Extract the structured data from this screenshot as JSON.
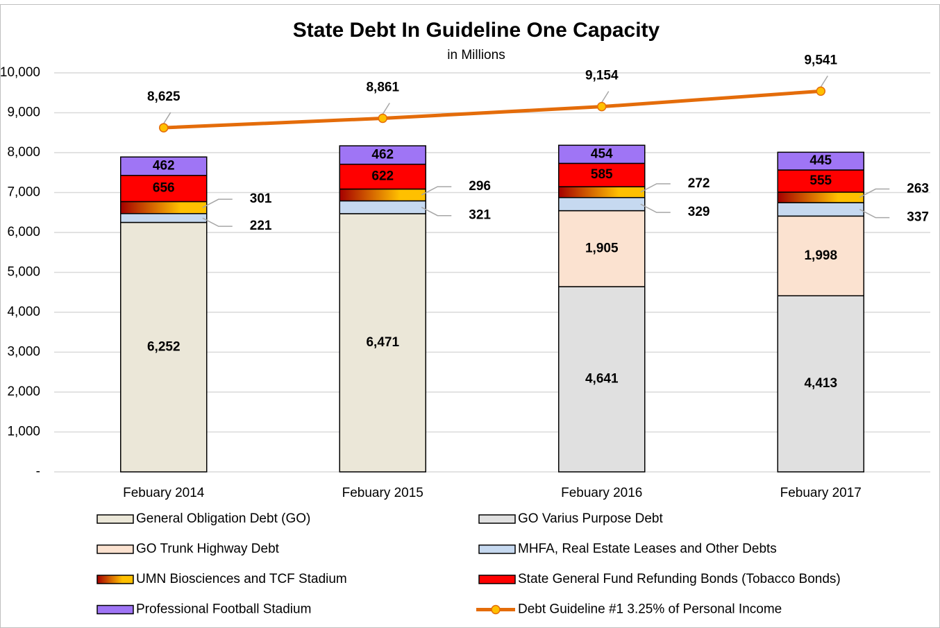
{
  "chart_data": {
    "type": "stacked_bar_line",
    "title": "State Debt In Guideline One Capacity",
    "subtitle": "in Millions",
    "categories": [
      "Febuary 2014",
      "Febuary 2015",
      "Febuary 2016",
      "Febuary 2017"
    ],
    "ylim": [
      0,
      10000
    ],
    "yticks": [
      {
        "value": 0,
        "label": "-"
      },
      {
        "value": 1000,
        "label": "1,000"
      },
      {
        "value": 2000,
        "label": "2,000"
      },
      {
        "value": 3000,
        "label": "3,000"
      },
      {
        "value": 4000,
        "label": "4,000"
      },
      {
        "value": 5000,
        "label": "5,000"
      },
      {
        "value": 6000,
        "label": "6,000"
      },
      {
        "value": 7000,
        "label": "7,000"
      },
      {
        "value": 8000,
        "label": "8,000"
      },
      {
        "value": 9000,
        "label": "9,000"
      },
      {
        "value": 10000,
        "label": "10,000"
      }
    ],
    "grid": true,
    "series": [
      {
        "name": "General Obligation Debt (GO)",
        "color": "#ebe7d8",
        "values": [
          6252,
          6471,
          null,
          null
        ],
        "value_labels": [
          "6,252",
          "6,471",
          null,
          null
        ]
      },
      {
        "name": "GO Varius Purpose Debt",
        "color": "#e0e0e0",
        "values": [
          null,
          null,
          4641,
          4413
        ],
        "value_labels": [
          null,
          null,
          "4,641",
          "4,413"
        ]
      },
      {
        "name": "GO Trunk Highway Debt",
        "color": "#fbe2d0",
        "values": [
          null,
          null,
          1905,
          1998
        ],
        "value_labels": [
          null,
          null,
          "1,905",
          "1,998"
        ]
      },
      {
        "name": "MHFA, Real Estate Leases and Other Debts",
        "color": "#c6d9f0",
        "values": [
          221,
          321,
          329,
          337
        ]
      },
      {
        "name": "UMN Biosciences and TCF Stadium",
        "color": "#ffc000",
        "values": [
          301,
          296,
          272,
          263
        ]
      },
      {
        "name": "State General Fund Refunding Bonds (Tobacco Bonds)",
        "color": "#ff0000",
        "values": [
          656,
          622,
          585,
          555
        ]
      },
      {
        "name": "Professional Football Stadium",
        "color": "#9f75f5",
        "values": [
          462,
          462,
          454,
          445
        ]
      },
      {
        "name": "Debt Guideline #1 3.25% of Personal Income",
        "color": "#e46c0a",
        "type": "line",
        "values": [
          8625,
          8861,
          9154,
          9541
        ],
        "value_labels": [
          "8,625",
          "8,861",
          "9,154",
          "9,541"
        ]
      }
    ]
  }
}
